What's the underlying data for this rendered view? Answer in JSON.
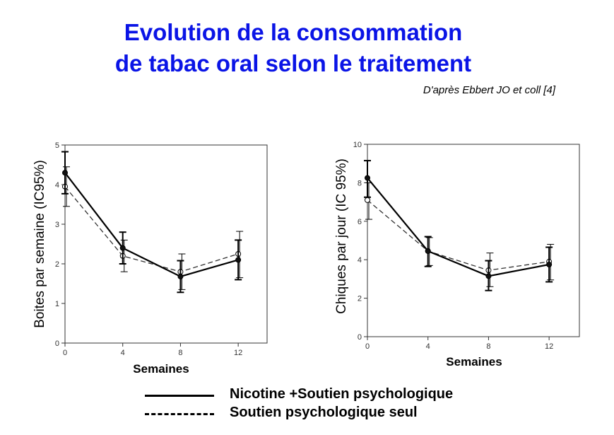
{
  "title_line1": "Evolution de la consommation",
  "title_line2": "de tabac oral selon le traitement",
  "source": "D'après Ebbert JO et coll [4]",
  "legend": [
    {
      "label": "Nicotine +Soutien psychologique",
      "style": "solid"
    },
    {
      "label": "Soutien psychologique seul",
      "style": "dashed"
    }
  ],
  "chart_data": [
    {
      "type": "line",
      "xlabel": "Semaines",
      "ylabel": "Boites par semaine (IC95%)",
      "xticks": [
        "0",
        "4",
        "8",
        "12"
      ],
      "yticks": [
        "0",
        "1",
        "2",
        "3",
        "4",
        "5"
      ],
      "xlim": [
        0,
        14
      ],
      "ylim": [
        0,
        5
      ],
      "grid": false,
      "series": [
        {
          "name": "Nicotine +Soutien psychologique",
          "style": "solid",
          "x": [
            0,
            4,
            8,
            12
          ],
          "y": [
            4.3,
            2.4,
            1.68,
            2.1
          ],
          "ci_low": [
            3.77,
            2.0,
            1.28,
            1.6
          ],
          "ci_high": [
            4.83,
            2.8,
            2.08,
            2.6
          ]
        },
        {
          "name": "Soutien psychologique seul",
          "style": "dashed",
          "x": [
            0,
            4,
            8,
            12
          ],
          "y": [
            3.95,
            2.2,
            1.8,
            2.25
          ],
          "ci_low": [
            3.45,
            1.8,
            1.35,
            1.65
          ],
          "ci_high": [
            4.45,
            2.6,
            2.25,
            2.82
          ]
        }
      ]
    },
    {
      "type": "line",
      "xlabel": "Semaines",
      "ylabel": "Chiques par jour (IC 95%)",
      "xticks": [
        "0",
        "4",
        "8",
        "12"
      ],
      "yticks": [
        "0",
        "2",
        "4",
        "6",
        "8",
        "10"
      ],
      "xlim": [
        0,
        14
      ],
      "ylim": [
        0,
        10
      ],
      "grid": false,
      "series": [
        {
          "name": "Nicotine +Soutien psychologique",
          "style": "solid",
          "x": [
            0,
            4,
            8,
            12
          ],
          "y": [
            8.25,
            4.45,
            3.15,
            3.75
          ],
          "ci_low": [
            7.25,
            3.65,
            2.4,
            2.85
          ],
          "ci_high": [
            9.15,
            5.2,
            3.95,
            4.65
          ]
        },
        {
          "name": "Soutien psychologique seul",
          "style": "dashed",
          "x": [
            0,
            4,
            8,
            12
          ],
          "y": [
            7.1,
            4.45,
            3.45,
            3.9
          ],
          "ci_low": [
            6.1,
            3.7,
            2.6,
            2.95
          ],
          "ci_high": [
            8.0,
            5.15,
            4.35,
            4.8
          ]
        }
      ]
    }
  ]
}
